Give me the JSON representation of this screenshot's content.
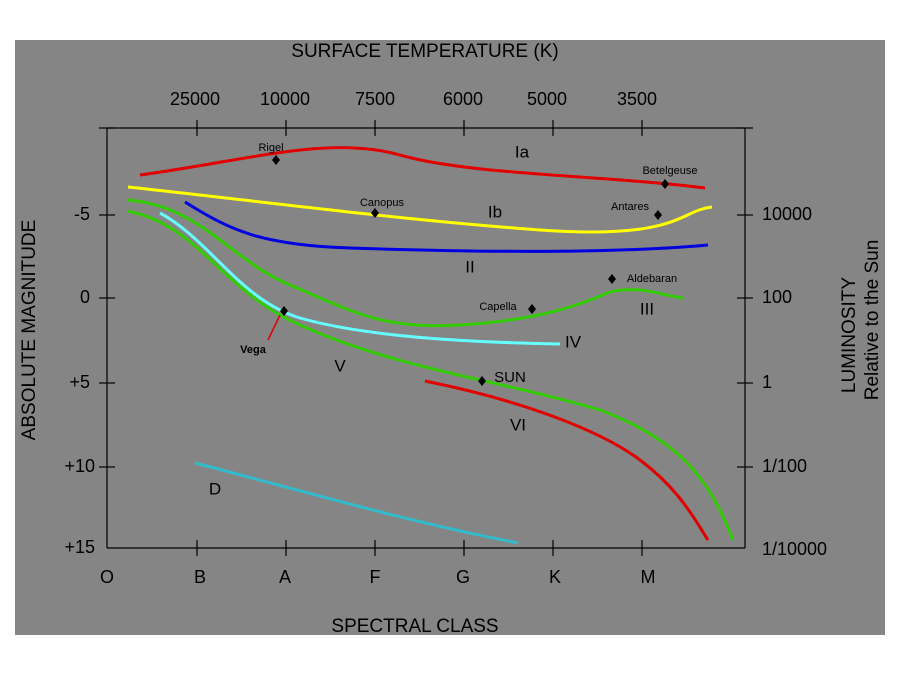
{
  "top_axis": {
    "title": "SURFACE TEMPERATURE (K)",
    "labels": [
      "25000",
      "10000",
      "7500",
      "6000",
      "5000",
      "3500"
    ]
  },
  "left_axis": {
    "title": "ABSOLUTE MAGNITUDE",
    "labels": [
      "-5",
      "0",
      "+5",
      "+10",
      "+15"
    ]
  },
  "right_axis": {
    "title": "LUMINOSITY",
    "subtitle": "Relative to the Sun",
    "labels": [
      "10000",
      "100",
      "1",
      "1/100",
      "1/10000"
    ]
  },
  "bottom_axis": {
    "title": "SPECTRAL CLASS",
    "labels": [
      "O",
      "B",
      "A",
      "F",
      "G",
      "K",
      "M"
    ]
  },
  "stars": [
    "Rigel",
    "Canopus",
    "Betelgeuse",
    "Antares",
    "Aldebaran",
    "Capella",
    "Vega",
    "SUN"
  ],
  "classes": [
    "Ia",
    "Ib",
    "II",
    "III",
    "IV",
    "V",
    "VI",
    "D"
  ]
}
